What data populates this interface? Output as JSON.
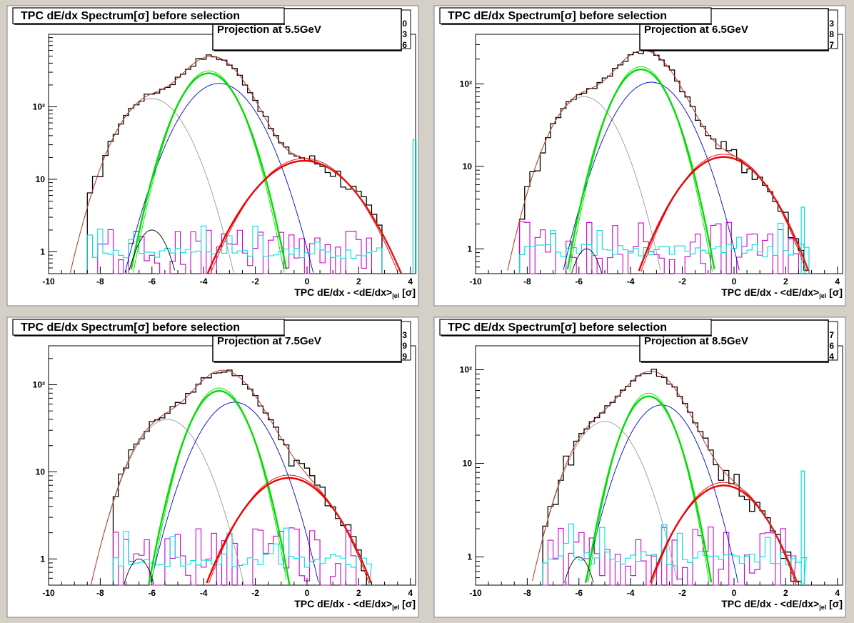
{
  "pads": [
    {
      "title": "TPC dE/dx Spectrum[σ] before selection",
      "stats_label": "Projection at 5.5GeV",
      "stats_digits": [
        "0",
        "3",
        "6"
      ],
      "xlabel_main": "TPC dE/dx - <dE/dx>",
      "xlabel_sub": "el",
      "xlabel_unit": " [σ]"
    },
    {
      "title": "TPC dE/dx Spectrum[σ] before selection",
      "stats_label": "Projection at 6.5GeV",
      "stats_digits": [
        "3",
        "8",
        "7"
      ],
      "xlabel_main": "TPC dE/dx - <dE/dx>",
      "xlabel_sub": "el",
      "xlabel_unit": " [σ]"
    },
    {
      "title": "TPC dE/dx Spectrum[σ] before selection",
      "stats_label": "Projection at 7.5GeV",
      "stats_digits": [
        "3",
        "9",
        "9"
      ],
      "xlabel_main": "TPC dE/dx - <dE/dx>",
      "xlabel_sub": "el",
      "xlabel_unit": " [σ]"
    },
    {
      "title": "TPC dE/dx Spectrum[σ] before selection",
      "stats_label": "Projection at 8.5GeV",
      "stats_digits": [
        "7",
        "6",
        "4"
      ],
      "xlabel_main": "TPC dE/dx - <dE/dx>",
      "xlabel_sub": "el",
      "xlabel_unit": " [σ]"
    }
  ],
  "colors": {
    "data": "#000000",
    "total_fit": "#c0392b",
    "pion": "#0000cc",
    "kaon_bold": "#00dd00",
    "kaon_thin": "#00dd00",
    "electron": "#ee0000",
    "proton": "#999999",
    "deuteron": "#000000",
    "magenta": "#cc00cc",
    "cyan": "#00dddd"
  },
  "chart_data": [
    {
      "type": "histogram",
      "xlim": [
        -10,
        4.2
      ],
      "ylim": [
        0.5,
        1000
      ],
      "log_y": true,
      "x_ticks": [
        -10,
        -8,
        -6,
        -4,
        -2,
        0,
        2,
        4
      ],
      "x_tick_labels": [
        "-10",
        "-8",
        "-6",
        "-4",
        "-2",
        "0",
        "2",
        "4"
      ],
      "y_ticks": [
        1,
        10,
        100
      ],
      "y_tick_labels": [
        "1",
        "10",
        "10²"
      ],
      "components": [
        {
          "id": "proton",
          "amp": 130,
          "mean": -6.0,
          "sigma": 0.95,
          "style": "thin",
          "color_key": "proton"
        },
        {
          "id": "pion",
          "amp": 210,
          "mean": -3.4,
          "sigma": 1.05,
          "style": "thin",
          "color_key": "pion"
        },
        {
          "id": "kaon_bold",
          "amp": 290,
          "mean": -3.8,
          "sigma": 0.85,
          "style": "bold",
          "color_key": "kaon_bold"
        },
        {
          "id": "electron",
          "amp": 18,
          "mean": -0.1,
          "sigma": 1.4,
          "style": "bold",
          "color_key": "electron"
        },
        {
          "id": "deuteron",
          "amp": 2.0,
          "mean": -6.0,
          "sigma": 0.55,
          "style": "thin",
          "color_key": "deuteron"
        }
      ],
      "data_range": [
        -8.5,
        2.8
      ],
      "noise_level": 1.0,
      "cyan_edge_peak": 35
    },
    {
      "type": "histogram",
      "xlim": [
        -10,
        4.2
      ],
      "ylim": [
        0.5,
        400
      ],
      "log_y": true,
      "x_ticks": [
        -10,
        -8,
        -6,
        -4,
        -2,
        0,
        2,
        4
      ],
      "x_tick_labels": [
        "-10",
        "-8",
        "-6",
        "-4",
        "-2",
        "0",
        "2",
        "4"
      ],
      "y_ticks": [
        1,
        10,
        100
      ],
      "y_tick_labels": [
        "1",
        "10",
        "10²"
      ],
      "components": [
        {
          "id": "proton",
          "amp": 70,
          "mean": -5.8,
          "sigma": 0.95,
          "style": "thin",
          "color_key": "proton"
        },
        {
          "id": "pion",
          "amp": 105,
          "mean": -3.2,
          "sigma": 1.05,
          "style": "thin",
          "color_key": "pion"
        },
        {
          "id": "kaon_bold",
          "amp": 150,
          "mean": -3.6,
          "sigma": 0.85,
          "style": "bold",
          "color_key": "kaon_bold"
        },
        {
          "id": "electron",
          "amp": 13,
          "mean": -0.4,
          "sigma": 1.3,
          "style": "bold",
          "color_key": "electron"
        },
        {
          "id": "deuteron",
          "amp": 1.0,
          "mean": -5.7,
          "sigma": 0.5,
          "style": "thin",
          "color_key": "deuteron"
        }
      ],
      "data_range": [
        -8.3,
        2.8
      ],
      "noise_level": 1.0,
      "cyan_edge_peak": 3.2
    },
    {
      "type": "histogram",
      "xlim": [
        -10,
        4.2
      ],
      "ylim": [
        0.5,
        280
      ],
      "log_y": true,
      "x_ticks": [
        -10,
        -8,
        -6,
        -4,
        -2,
        0,
        2,
        4
      ],
      "x_tick_labels": [
        "-10",
        "-8",
        "-6",
        "-4",
        "-2",
        "0",
        "2",
        "4"
      ],
      "y_ticks": [
        1,
        10,
        100
      ],
      "y_tick_labels": [
        "1",
        "10",
        "10²"
      ],
      "components": [
        {
          "id": "proton",
          "amp": 40,
          "mean": -5.4,
          "sigma": 1.0,
          "style": "thin",
          "color_key": "proton"
        },
        {
          "id": "pion",
          "amp": 63,
          "mean": -2.8,
          "sigma": 1.05,
          "style": "thin",
          "color_key": "pion"
        },
        {
          "id": "kaon_bold",
          "amp": 85,
          "mean": -3.4,
          "sigma": 0.85,
          "style": "bold",
          "color_key": "kaon_bold"
        },
        {
          "id": "electron",
          "amp": 8.5,
          "mean": -0.7,
          "sigma": 1.35,
          "style": "bold",
          "color_key": "electron"
        },
        {
          "id": "deuteron",
          "amp": 1.0,
          "mean": -6.5,
          "sigma": 0.5,
          "style": "thin",
          "color_key": "deuteron"
        }
      ],
      "data_range": [
        -7.5,
        2.3
      ],
      "noise_level": 1.1,
      "cyan_edge_peak": 0
    },
    {
      "type": "histogram",
      "xlim": [
        -10,
        4.2
      ],
      "ylim": [
        0.5,
        180
      ],
      "log_y": true,
      "x_ticks": [
        -10,
        -8,
        -6,
        -4,
        -2,
        0,
        2,
        4
      ],
      "x_tick_labels": [
        "-10",
        "-8",
        "-6",
        "-4",
        "-2",
        "0",
        "2",
        "4"
      ],
      "y_ticks": [
        1,
        10,
        100
      ],
      "y_tick_labels": [
        "1",
        "10",
        "10²"
      ],
      "components": [
        {
          "id": "proton",
          "amp": 28,
          "mean": -5.0,
          "sigma": 1.0,
          "style": "thin",
          "color_key": "proton"
        },
        {
          "id": "pion",
          "amp": 42,
          "mean": -2.8,
          "sigma": 1.0,
          "style": "thin",
          "color_key": "pion"
        },
        {
          "id": "kaon_bold",
          "amp": 52,
          "mean": -3.3,
          "sigma": 0.8,
          "style": "bold",
          "color_key": "kaon_bold"
        },
        {
          "id": "electron",
          "amp": 5.8,
          "mean": -0.4,
          "sigma": 1.3,
          "style": "bold",
          "color_key": "electron"
        },
        {
          "id": "deuteron",
          "amp": 1.0,
          "mean": -6.0,
          "sigma": 0.5,
          "style": "thin",
          "color_key": "deuteron"
        }
      ],
      "data_range": [
        -7.4,
        2.6
      ],
      "noise_level": 1.0,
      "cyan_edge_peak": 8.3
    }
  ]
}
